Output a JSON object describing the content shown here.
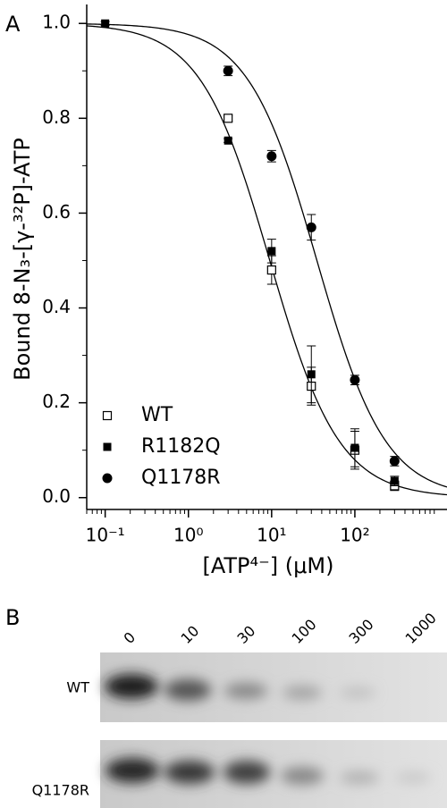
{
  "chart_data": {
    "type": "scatter",
    "panel_label": "A",
    "x_label": "[ATP⁴⁻] (μM)",
    "y_label": "Bound 8-N₃-[γ-³²P]-ATP",
    "log_x": true,
    "xlim": [
      0.06,
      1280
    ],
    "ylim": [
      -0.025,
      1.04
    ],
    "xticks": [
      {
        "value": 0.1,
        "label": "10⁻¹"
      },
      {
        "value": 1,
        "label": "10⁰"
      },
      {
        "value": 10,
        "label": "10¹"
      },
      {
        "value": 100,
        "label": "10²"
      }
    ],
    "yticks": [
      {
        "value": 0,
        "label": "0.0"
      },
      0.2,
      0.4,
      0.6,
      0.8,
      {
        "value": 1,
        "label": "1.0"
      }
    ],
    "legend": "lower left",
    "series": [
      {
        "name": "WT",
        "marker": "open-square",
        "color": "#000000",
        "x": [
          3,
          10,
          30,
          100,
          300
        ],
        "values": [
          0.8,
          0.48,
          0.235,
          0.1,
          0.025
        ],
        "errors": [
          0.006,
          0.03,
          0.04,
          0.04,
          0.01
        ]
      },
      {
        "name": "R1182Q",
        "marker": "square",
        "color": "#000000",
        "x": [
          0.1,
          3,
          10,
          30,
          100,
          300
        ],
        "values": [
          1.0,
          0.753,
          0.52,
          0.26,
          0.105,
          0.035
        ],
        "errors": [
          0.004,
          0.004,
          0.025,
          0.06,
          0.04,
          0.01
        ]
      },
      {
        "name": "Q1178R",
        "marker": "circle",
        "color": "#000000",
        "x": [
          3,
          10,
          30,
          100,
          300
        ],
        "values": [
          0.9,
          0.72,
          0.57,
          0.248,
          0.077
        ],
        "errors": [
          0.01,
          0.012,
          0.027,
          0.01,
          0.01
        ]
      }
    ],
    "fits": [
      {
        "ic50": 9.5,
        "hill": 1.04,
        "color": "#000000"
      },
      {
        "ic50": 35,
        "hill": 1.05,
        "color": "#000000"
      }
    ]
  },
  "gel": {
    "panel_label": "B",
    "lanes": [
      "0",
      "10",
      "30",
      "100",
      "300",
      "1000"
    ],
    "rows": [
      "WT",
      "Q1178R"
    ]
  }
}
